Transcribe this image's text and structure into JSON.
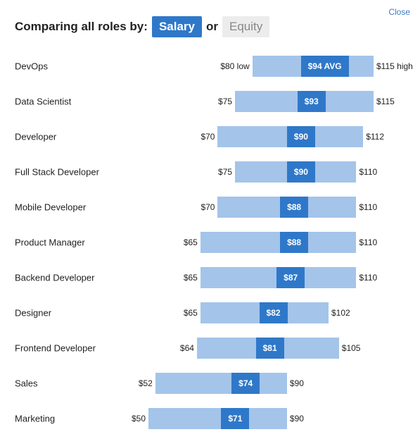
{
  "header": {
    "title": "Comparing all roles by:",
    "option_selected": "Salary",
    "separator": "or",
    "option_other": "Equity",
    "close": "Close"
  },
  "chart_data": {
    "type": "range",
    "categories": [
      "DevOps",
      "Data Scientist",
      "Developer",
      "Full Stack Developer",
      "Mobile Developer",
      "Product Manager",
      "Backend Developer",
      "Designer",
      "Frontend Developer",
      "Sales",
      "Marketing"
    ],
    "low": [
      80,
      75,
      70,
      75,
      70,
      65,
      65,
      65,
      64,
      52,
      50
    ],
    "low_labels": [
      "$80 low",
      "$75",
      "$70",
      "$75",
      "$70",
      "$65",
      "$65",
      "$65",
      "$64",
      "$52",
      "$50"
    ],
    "avg": [
      94,
      93,
      90,
      90,
      88,
      88,
      87,
      82,
      81,
      74,
      71
    ],
    "avg_labels": [
      "$94 AVG",
      "$93",
      "$90",
      "$90",
      "$88",
      "$88",
      "$87",
      "$82",
      "$81",
      "$74",
      "$71"
    ],
    "high": [
      115,
      115,
      112,
      110,
      110,
      110,
      110,
      102,
      105,
      90,
      90
    ],
    "high_labels": [
      "$115 high",
      "$115",
      "$112",
      "$110",
      "$110",
      "$110",
      "$110",
      "$102",
      "$105",
      "$90",
      "$90"
    ],
    "range_color": "#a4c4ea",
    "avg_color": "#2f78c9"
  }
}
